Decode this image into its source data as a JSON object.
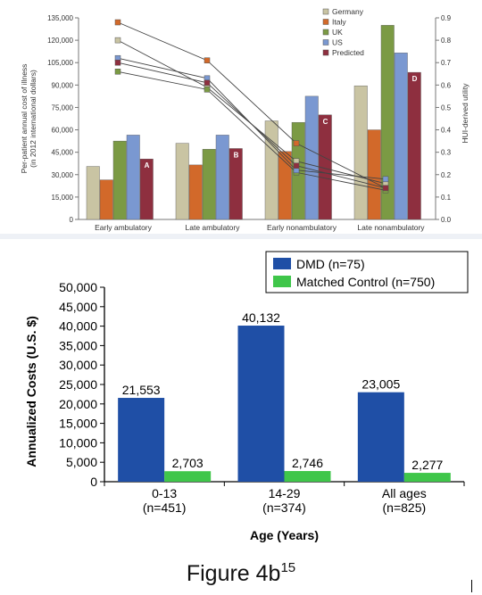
{
  "chart_data": [
    {
      "type": "bar",
      "ylabel": [
        "Per-patient annual cost of illness",
        "(in 2012 international dollars)"
      ],
      "y2label": "HUI-derived utility",
      "categories": [
        "Early ambulatory",
        "Late ambulatory",
        "Early nonambulatory",
        "Late nonambulatory"
      ],
      "ylim": [
        0,
        135000
      ],
      "yticks": [
        0,
        15000,
        30000,
        45000,
        60000,
        75000,
        90000,
        105000,
        120000,
        135000
      ],
      "ytick_labels": [
        "0",
        "15,000",
        "30,000",
        "45,000",
        "60,000",
        "75,000",
        "90,000",
        "105,000",
        "120,000",
        "135,000"
      ],
      "y2lim": [
        0,
        0.9
      ],
      "y2ticks": [
        0,
        0.1,
        0.2,
        0.3,
        0.4,
        0.5,
        0.6,
        0.7,
        0.8,
        0.9
      ],
      "y2tick_labels": [
        "0.0",
        "0.1",
        "0.2",
        "0.3",
        "0.4",
        "0.5",
        "0.6",
        "0.7",
        "0.8",
        "0.9"
      ],
      "legend_position": "top-right",
      "bar_labels": [
        "A",
        "B",
        "C",
        "D"
      ],
      "series": [
        {
          "name": "Germany",
          "color": "#c9c4a3",
          "values": [
            35500,
            51000,
            66000,
            89500
          ],
          "utility": [
            0.8,
            0.59,
            0.26,
            0.16
          ]
        },
        {
          "name": "Italy",
          "color": "#d2692a",
          "values": [
            26500,
            36500,
            45500,
            60000
          ],
          "utility": [
            0.88,
            0.71,
            0.34,
            0.14
          ]
        },
        {
          "name": "UK",
          "color": "#7b9a44",
          "values": [
            52500,
            47000,
            65000,
            130000
          ],
          "utility": [
            0.66,
            0.58,
            0.21,
            0.13
          ]
        },
        {
          "name": "US",
          "color": "#7a98d1",
          "values": [
            56500,
            56500,
            82500,
            111500
          ],
          "utility": [
            0.72,
            0.63,
            0.22,
            0.18
          ]
        },
        {
          "name": "Predicted",
          "color": "#8e2f3f",
          "values": [
            40500,
            47500,
            70000,
            98500
          ],
          "utility": [
            0.7,
            0.61,
            0.24,
            0.14
          ]
        }
      ]
    },
    {
      "type": "bar",
      "ylabel": "Annualized Costs (U.S. $)",
      "xlabel": "Age (Years)",
      "categories": [
        [
          "0-13",
          "(n=451)"
        ],
        [
          "14-29",
          "(n=374)"
        ],
        [
          "All ages",
          "(n=825)"
        ]
      ],
      "ylim": [
        0,
        50000
      ],
      "yticks": [
        0,
        5000,
        10000,
        15000,
        20000,
        25000,
        30000,
        35000,
        40000,
        45000,
        50000
      ],
      "ytick_labels": [
        "0",
        "5,000",
        "10,000",
        "15,000",
        "20,000",
        "25,000",
        "30,000",
        "35,000",
        "40,000",
        "45,000",
        "50,000"
      ],
      "legend_position": "top-right",
      "series": [
        {
          "name": "DMD (n=75)",
          "color": "#1f4fa6",
          "values": [
            21553,
            40132,
            23005
          ],
          "labels": [
            "21,553",
            "40,132",
            "23,005"
          ]
        },
        {
          "name": "Matched Control (n=750)",
          "color": "#3fc64a",
          "values": [
            2703,
            2746,
            2277
          ],
          "labels": [
            "2,703",
            "2,746",
            "2,277"
          ]
        }
      ]
    }
  ],
  "caption": {
    "text": "Figure 4b",
    "superscript": "15"
  }
}
